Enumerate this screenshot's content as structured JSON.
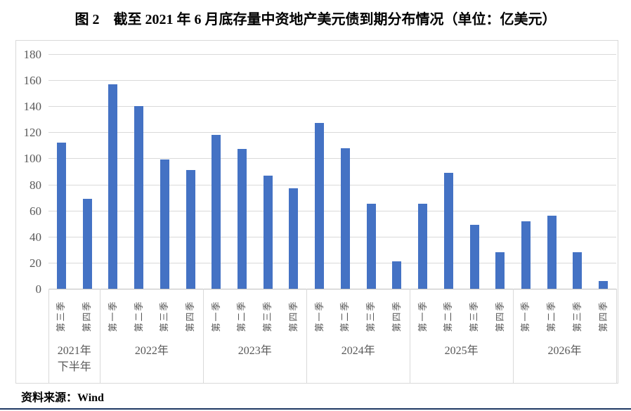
{
  "title": "图 2　截至 2021 年 6 月底存量中资地产美元债到期分布情况（单位：亿美元）",
  "source_note": "资料来源：Wind",
  "colors": {
    "bar": "#4472c4",
    "gridline": "#d9d9d9",
    "axis_line": "#bfbfbf",
    "tick_text": "#595959",
    "chart_border": "#d9d9d9",
    "bottom_rule": "#1f3864"
  },
  "chart_data": {
    "type": "bar",
    "title": "截至 2021 年 6 月底存量中资地产美元债到期分布情况",
    "unit": "亿美元",
    "ylim": [
      0,
      180
    ],
    "ytick_interval": 20,
    "yticks": [
      0,
      20,
      40,
      60,
      80,
      100,
      120,
      140,
      160,
      180
    ],
    "grid": true,
    "legend": "none",
    "groups": [
      {
        "year": "2021年",
        "year_line2": "下半年",
        "quarters": [
          "第三季",
          "第四季"
        ],
        "values": [
          112,
          69
        ]
      },
      {
        "year": "2022年",
        "year_line2": "",
        "quarters": [
          "第一季",
          "第二季",
          "第三季",
          "第四季"
        ],
        "values": [
          157,
          140,
          99,
          91
        ]
      },
      {
        "year": "2023年",
        "year_line2": "",
        "quarters": [
          "第一季",
          "第二季",
          "第三季",
          "第四季"
        ],
        "values": [
          118,
          107,
          87,
          77
        ]
      },
      {
        "year": "2024年",
        "year_line2": "",
        "quarters": [
          "第一季",
          "第二季",
          "第三季",
          "第四季"
        ],
        "values": [
          127,
          108,
          65,
          21
        ]
      },
      {
        "year": "2025年",
        "year_line2": "",
        "quarters": [
          "第一季",
          "第二季",
          "第三季",
          "第四季"
        ],
        "values": [
          65,
          89,
          49,
          28
        ]
      },
      {
        "year": "2026年",
        "year_line2": "",
        "quarters": [
          "第一季",
          "第二季",
          "第三季",
          "第四季"
        ],
        "values": [
          52,
          56,
          28,
          6
        ]
      }
    ]
  }
}
